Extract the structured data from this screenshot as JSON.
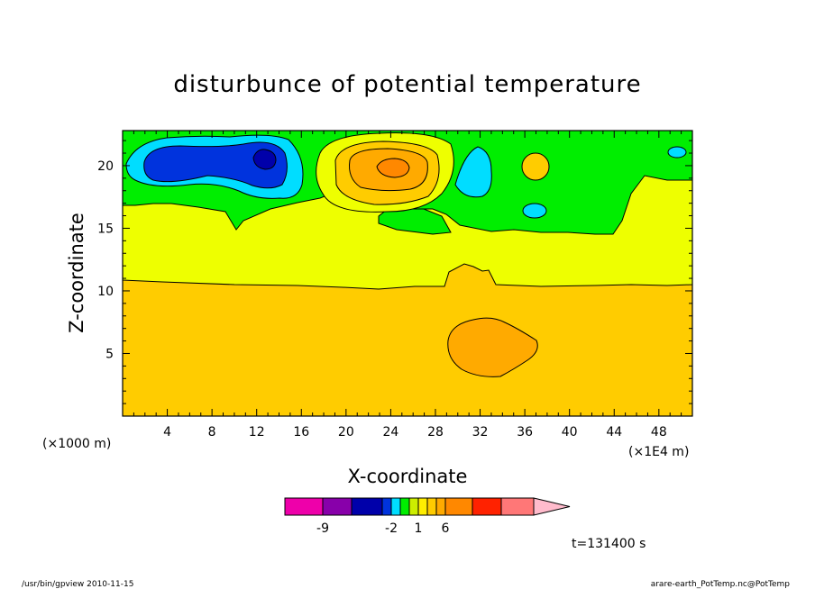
{
  "chart_data": {
    "type": "contour",
    "title": "disturbunce of potential temperature",
    "xlabel": "X-coordinate",
    "ylabel": "Z-coordinate",
    "x_unit_left": "(×1000 m)",
    "x_unit_right": "(×1E4 m)",
    "xlim": [
      0,
      51
    ],
    "ylim": [
      0,
      22.8
    ],
    "x_ticks": [
      4,
      8,
      12,
      16,
      20,
      24,
      28,
      32,
      36,
      40,
      44,
      48
    ],
    "y_ticks": [
      5,
      10,
      15,
      20
    ],
    "time_label": "t=131400 s",
    "colorbar": {
      "colors": [
        "#ee00aa",
        "#8800aa",
        "#0000aa",
        "#0033dd",
        "#00ddff",
        "#00ee00",
        "#ccee00",
        "#ffee00",
        "#ffcc00",
        "#ffaa00",
        "#ff8800",
        "#ff2200",
        "#ff7777",
        "#ffbbcc"
      ],
      "labels": [
        {
          "text": "-9",
          "after_box": 1
        },
        {
          "text": "-2",
          "after_box": 4
        },
        {
          "text": "1",
          "after_box": 7
        },
        {
          "text": "6",
          "after_box": 10
        }
      ]
    },
    "regions": [
      {
        "label": "positive anomaly (orange)",
        "center": [
          33,
          5.8
        ],
        "level": "warm"
      },
      {
        "label": "warm core",
        "center": [
          24.5,
          20
        ],
        "level": "warm-max"
      },
      {
        "label": "cold core",
        "center": [
          12.7,
          20.7
        ],
        "level": "cold-min"
      }
    ]
  },
  "footer": {
    "left": "/usr/bin/gpview   2010-11-15",
    "right": "arare-earth_PotTemp.nc@PotTemp"
  }
}
